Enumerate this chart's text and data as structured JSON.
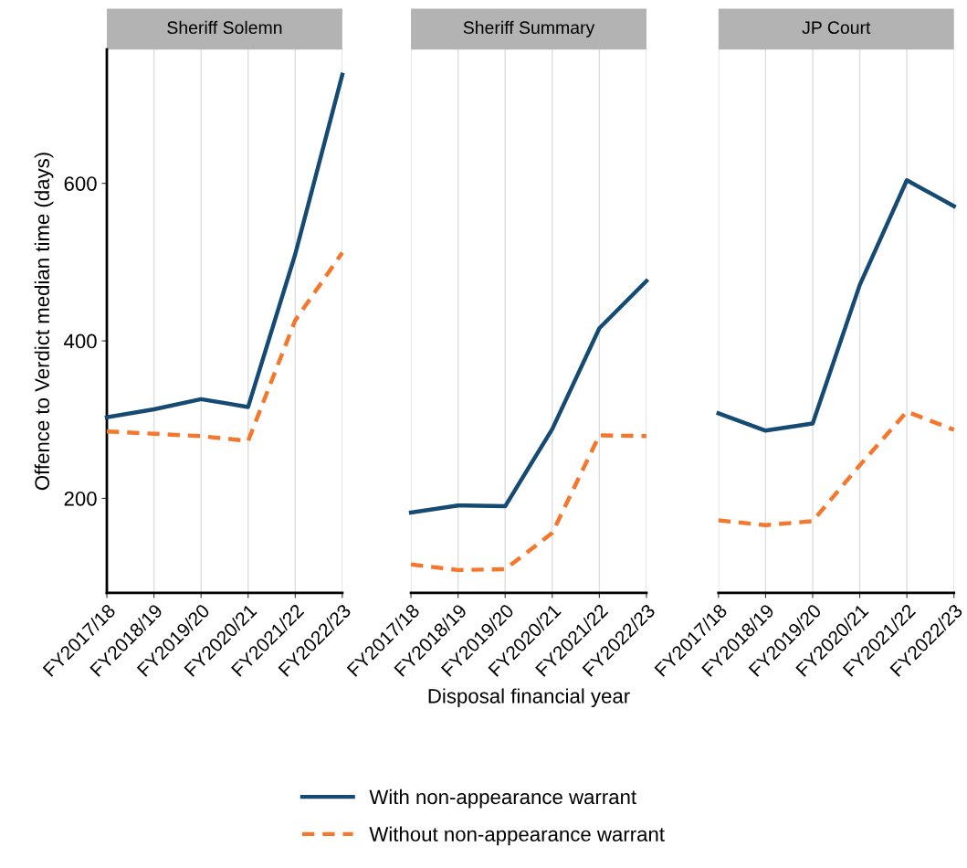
{
  "chart_data": [
    {
      "type": "line",
      "title": "Sheriff Solemn",
      "ylabel": "Offence to Verdict median time (days)",
      "categories": [
        "FY2017/18",
        "FY2018/19",
        "FY2019/20",
        "FY2020/21",
        "FY2021/22",
        "FY2022/23"
      ],
      "ylim": [
        80,
        770
      ],
      "yticks": [
        200,
        400,
        600
      ],
      "grid": "x",
      "legend": "bottom",
      "marker": "none",
      "series": [
        {
          "name": "With non-appearance warrant",
          "color": "#154a73",
          "line_style": "solid",
          "values": [
            303,
            313,
            326,
            316,
            510,
            738
          ]
        },
        {
          "name": "Without non-appearance warrant",
          "color": "#f4772b",
          "line_style": "dashed",
          "values": [
            285,
            282,
            279,
            273,
            426,
            512
          ]
        }
      ]
    },
    {
      "type": "line",
      "title": "Sheriff Summary",
      "xlabel": "Disposal financial year",
      "categories": [
        "FY2017/18",
        "FY2018/19",
        "FY2019/20",
        "FY2020/21",
        "FY2021/22",
        "FY2022/23"
      ],
      "ylim": [
        80,
        770
      ],
      "tick_labels": "x",
      "grid": "x",
      "marker": "none",
      "series": [
        {
          "color": "#154a73",
          "line_style": "solid",
          "values": [
            182,
            191,
            190,
            288,
            416,
            476
          ]
        },
        {
          "color": "#f4772b",
          "line_style": "dashed",
          "values": [
            116,
            109,
            110,
            156,
            280,
            279
          ]
        }
      ]
    },
    {
      "type": "line",
      "title": "JP Court",
      "categories": [
        "FY2017/18",
        "FY2018/19",
        "FY2019/20",
        "FY2020/21",
        "FY2021/22",
        "FY2022/23"
      ],
      "ylim": [
        80,
        770
      ],
      "tick_labels": "x",
      "grid": "x",
      "marker": "none",
      "series": [
        {
          "color": "#154a73",
          "line_style": "solid",
          "values": [
            308,
            286,
            295,
            471,
            604,
            571
          ]
        },
        {
          "color": "#f4772b",
          "line_style": "dashed",
          "values": [
            172,
            166,
            171,
            242,
            310,
            287
          ]
        }
      ]
    }
  ]
}
